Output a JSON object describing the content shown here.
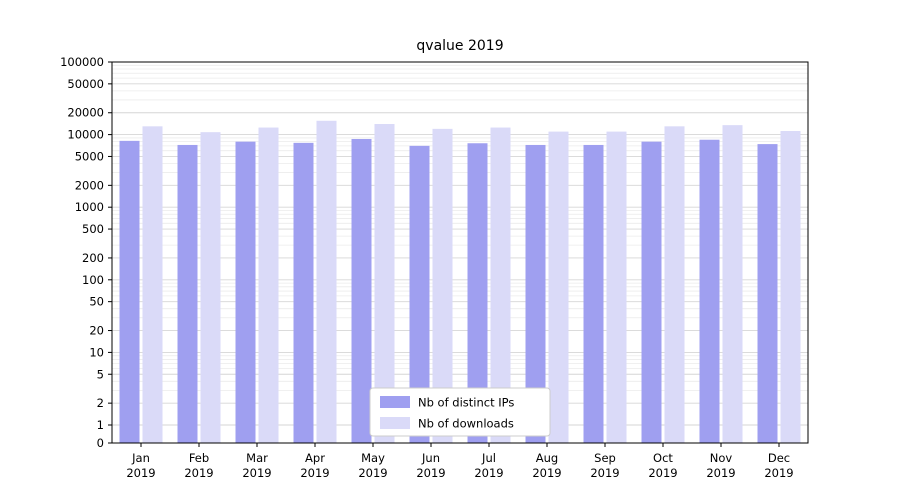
{
  "figure": {
    "title": "qvalue 2019"
  },
  "chart_data": {
    "type": "bar",
    "title": "qvalue 2019",
    "scale": "symlog",
    "ylim": [
      0,
      100000
    ],
    "yticks": [
      0,
      1,
      2,
      5,
      10,
      20,
      50,
      100,
      200,
      500,
      1000,
      2000,
      5000,
      10000,
      20000,
      50000,
      100000
    ],
    "grid": true,
    "legend_position": "lower center",
    "categories": [
      "Jan",
      "Feb",
      "Mar",
      "Apr",
      "May",
      "Jun",
      "Jul",
      "Aug",
      "Sep",
      "Oct",
      "Nov",
      "Dec"
    ],
    "year": "2019",
    "series": [
      {
        "name": "Nb of distinct IPs",
        "color": "#9f9ff0",
        "values": [
          8200,
          7200,
          8000,
          7700,
          8700,
          7000,
          7600,
          7200,
          7200,
          8000,
          8500,
          7400
        ]
      },
      {
        "name": "Nb of downloads",
        "color": "#dadaf8",
        "values": [
          13000,
          10800,
          12500,
          15500,
          14000,
          12000,
          12500,
          11000,
          11000,
          13000,
          13500,
          11200
        ]
      }
    ]
  }
}
